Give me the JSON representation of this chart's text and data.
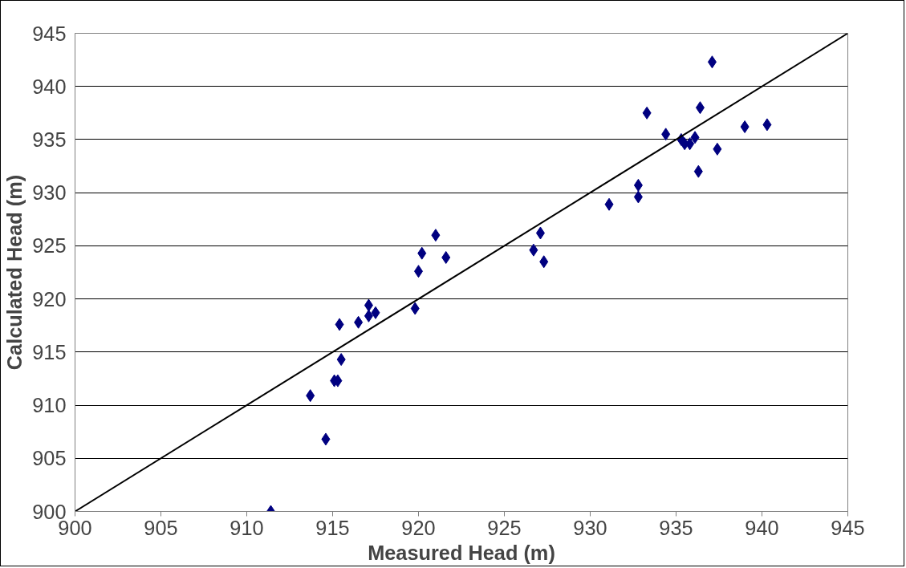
{
  "chart_data": {
    "type": "scatter",
    "xlabel": "Measured Head (m)",
    "ylabel": "Calculated Head (m)",
    "xlim": [
      900,
      945
    ],
    "ylim": [
      900,
      945
    ],
    "xticks": [
      900,
      905,
      910,
      915,
      920,
      925,
      930,
      935,
      940,
      945
    ],
    "yticks": [
      900,
      905,
      910,
      915,
      920,
      925,
      930,
      935,
      940,
      945
    ],
    "grid": "y",
    "series": [
      {
        "marker": "diamond",
        "color": "#000080",
        "x": [
          911.4,
          913.7,
          914.6,
          915.1,
          915.3,
          915.5,
          915.4,
          916.5,
          917.1,
          917.1,
          917.5,
          919.8,
          920.0,
          920.2,
          921.0,
          921.6,
          926.7,
          927.1,
          927.3,
          931.1,
          932.8,
          932.8,
          933.3,
          934.4,
          935.3,
          935.5,
          935.8,
          936.1,
          936.4,
          936.3,
          937.1,
          937.4,
          939.0,
          940.3
        ],
        "values": [
          900.0,
          910.9,
          906.8,
          912.3,
          912.3,
          914.3,
          917.6,
          917.8,
          919.4,
          918.4,
          918.7,
          919.1,
          922.6,
          924.3,
          926.0,
          923.9,
          924.6,
          926.2,
          923.5,
          928.9,
          930.7,
          929.6,
          937.5,
          935.5,
          935.0,
          934.6,
          934.6,
          935.2,
          938.0,
          932.0,
          942.3,
          934.1,
          936.2,
          936.4
        ]
      },
      {
        "type": "line",
        "color": "#000000",
        "line_style": "solid",
        "x": [
          900,
          945
        ],
        "values": [
          900,
          945
        ]
      }
    ]
  }
}
